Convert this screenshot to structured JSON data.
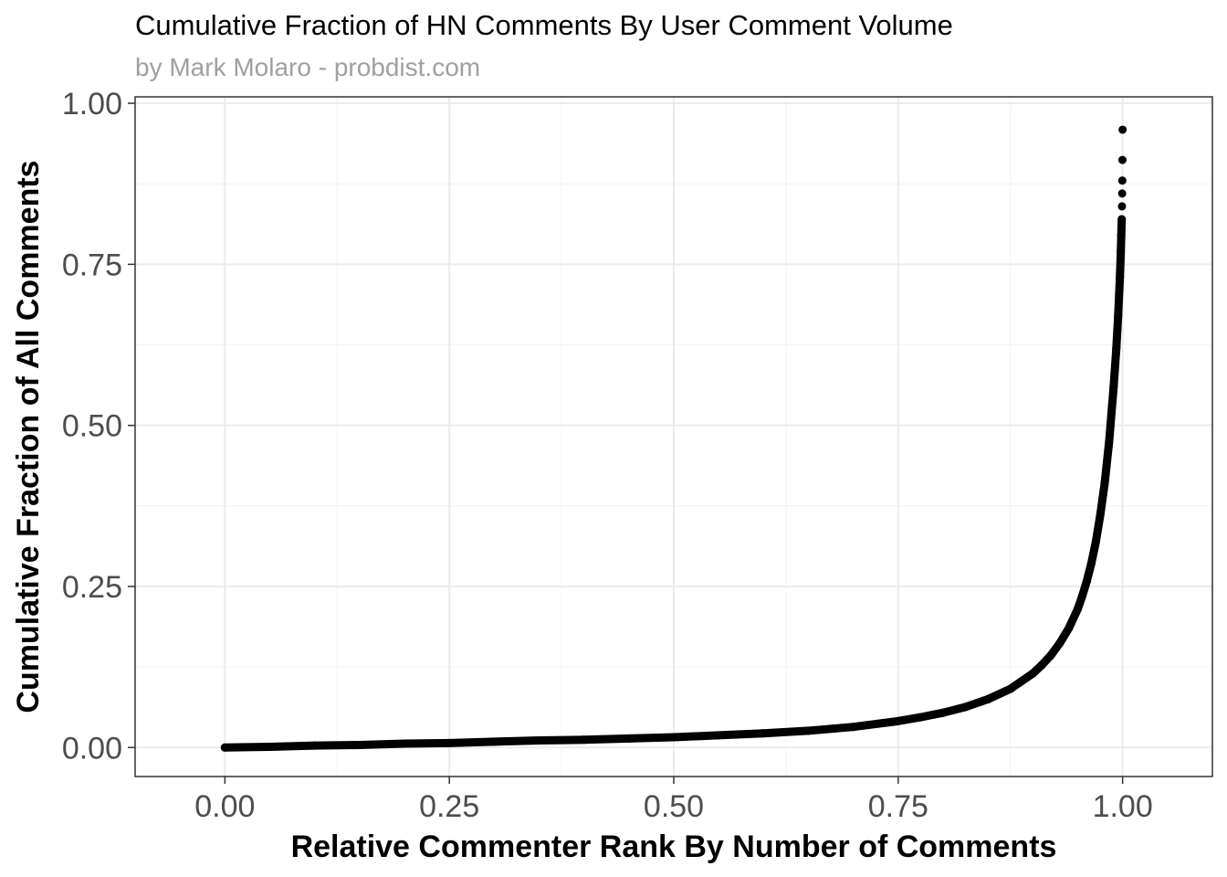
{
  "chart_data": {
    "type": "scatter",
    "title": "Cumulative Fraction of HN Comments By User Comment Volume",
    "subtitle": "by Mark Molaro - probdist.com",
    "xlabel": "Relative Commenter Rank By Number of Comments",
    "ylabel": "Cumulative Fraction of All Comments",
    "xlim": [
      -0.1,
      1.1
    ],
    "ylim": [
      -0.045,
      1.01
    ],
    "x_ticks": [
      0.0,
      0.25,
      0.5,
      0.75,
      1.0
    ],
    "x_tick_labels": [
      "0.00",
      "0.25",
      "0.50",
      "0.75",
      "1.00"
    ],
    "y_ticks": [
      0.0,
      0.25,
      0.5,
      0.75,
      1.0
    ],
    "y_tick_labels": [
      "0.00",
      "0.25",
      "0.50",
      "0.75",
      "1.00"
    ],
    "grid": true,
    "point_color": "#000000",
    "series": [
      {
        "points": [
          [
            0.0,
            0.0
          ],
          [
            0.05,
            0.001
          ],
          [
            0.1,
            0.003
          ],
          [
            0.15,
            0.004
          ],
          [
            0.2,
            0.006
          ],
          [
            0.25,
            0.007
          ],
          [
            0.3,
            0.009
          ],
          [
            0.35,
            0.011
          ],
          [
            0.4,
            0.012
          ],
          [
            0.45,
            0.014
          ],
          [
            0.5,
            0.016
          ],
          [
            0.55,
            0.019
          ],
          [
            0.6,
            0.022
          ],
          [
            0.65,
            0.026
          ],
          [
            0.7,
            0.032
          ],
          [
            0.75,
            0.041
          ],
          [
            0.775,
            0.047
          ],
          [
            0.8,
            0.054
          ],
          [
            0.825,
            0.063
          ],
          [
            0.85,
            0.075
          ],
          [
            0.875,
            0.091
          ],
          [
            0.9,
            0.115
          ],
          [
            0.91,
            0.128
          ],
          [
            0.92,
            0.143
          ],
          [
            0.93,
            0.162
          ],
          [
            0.94,
            0.185
          ],
          [
            0.95,
            0.215
          ],
          [
            0.955,
            0.235
          ],
          [
            0.96,
            0.258
          ],
          [
            0.965,
            0.285
          ],
          [
            0.97,
            0.318
          ],
          [
            0.975,
            0.36
          ],
          [
            0.98,
            0.41
          ],
          [
            0.985,
            0.475
          ],
          [
            0.99,
            0.56
          ],
          [
            0.993,
            0.62
          ],
          [
            0.995,
            0.67
          ],
          [
            0.997,
            0.73
          ],
          [
            0.998,
            0.77
          ],
          [
            0.9985,
            0.795
          ],
          [
            0.999,
            0.82
          ],
          [
            0.9993,
            0.84
          ],
          [
            0.9995,
            0.86
          ],
          [
            0.9997,
            0.88
          ],
          [
            0.9998,
            0.912
          ],
          [
            1.0,
            0.959
          ]
        ]
      }
    ]
  }
}
